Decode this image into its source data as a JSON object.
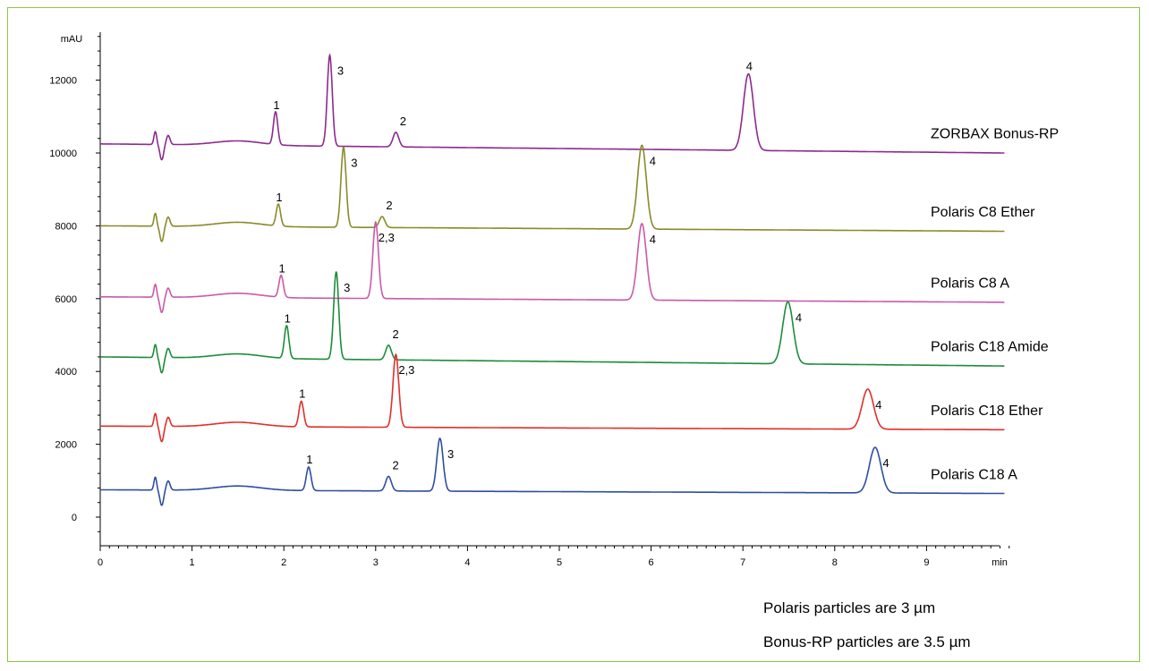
{
  "chart_data": {
    "type": "line",
    "title": "",
    "xlabel": "min",
    "ylabel": "mAU",
    "xlim": [
      0,
      9.9
    ],
    "ylim": [
      -500,
      13500
    ],
    "x_ticks": [
      0,
      1,
      2,
      3,
      4,
      5,
      6,
      7,
      8,
      9
    ],
    "y_ticks": [
      0,
      2000,
      4000,
      6000,
      8000,
      10000,
      12000
    ],
    "series": [
      {
        "name": "ZORBAX Bonus-RP",
        "color": "#8b2b8e",
        "baseline_start": 10250,
        "baseline_end": 10000,
        "peaks": [
          {
            "label": "1",
            "t": 1.91,
            "height": 900
          },
          {
            "label": "3",
            "t": 2.5,
            "height": 2500
          },
          {
            "label": "2",
            "t": 3.22,
            "height": 400
          },
          {
            "label": "4",
            "t": 7.06,
            "height": 2100
          }
        ]
      },
      {
        "name": "Polaris C8 Ether",
        "color": "#8a8a2a",
        "baseline_start": 8000,
        "baseline_end": 7850,
        "peaks": [
          {
            "label": "1",
            "t": 1.94,
            "height": 600
          },
          {
            "label": "3",
            "t": 2.65,
            "height": 2200
          },
          {
            "label": "2",
            "t": 3.07,
            "height": 300
          },
          {
            "label": "4",
            "t": 5.9,
            "height": 2300
          }
        ]
      },
      {
        "name": "Polaris C8 A",
        "color": "#c85aaa",
        "baseline_start": 6050,
        "baseline_end": 5900,
        "peaks": [
          {
            "label": "1",
            "t": 1.97,
            "height": 600
          },
          {
            "label": "2,3",
            "t": 3.0,
            "height": 2100
          },
          {
            "label": "4",
            "t": 5.9,
            "height": 2100
          }
        ]
      },
      {
        "name": "Polaris C18 Amide",
        "color": "#1e8c3a",
        "baseline_start": 4400,
        "baseline_end": 4150,
        "peaks": [
          {
            "label": "1",
            "t": 2.03,
            "height": 900
          },
          {
            "label": "3",
            "t": 2.57,
            "height": 2400
          },
          {
            "label": "2",
            "t": 3.14,
            "height": 400
          },
          {
            "label": "4",
            "t": 7.49,
            "height": 1700
          }
        ]
      },
      {
        "name": "Polaris C18 Ether",
        "color": "#e0302a",
        "baseline_start": 2500,
        "baseline_end": 2400,
        "peaks": [
          {
            "label": "1",
            "t": 2.19,
            "height": 700
          },
          {
            "label": "2,3",
            "t": 3.22,
            "height": 2000
          },
          {
            "label": "4",
            "t": 8.36,
            "height": 1100
          }
        ]
      },
      {
        "name": "Polaris C18 A",
        "color": "#2e4f9e",
        "baseline_start": 750,
        "baseline_end": 650,
        "peaks": [
          {
            "label": "1",
            "t": 2.27,
            "height": 650
          },
          {
            "label": "2",
            "t": 3.14,
            "height": 400
          },
          {
            "label": "3",
            "t": 3.7,
            "height": 1450
          },
          {
            "label": "4",
            "t": 8.44,
            "height": 1250
          }
        ]
      }
    ]
  },
  "notes": {
    "line1": "Polaris particles are 3 µm",
    "line2": "Bonus-RP particles are 3.5 µm"
  }
}
